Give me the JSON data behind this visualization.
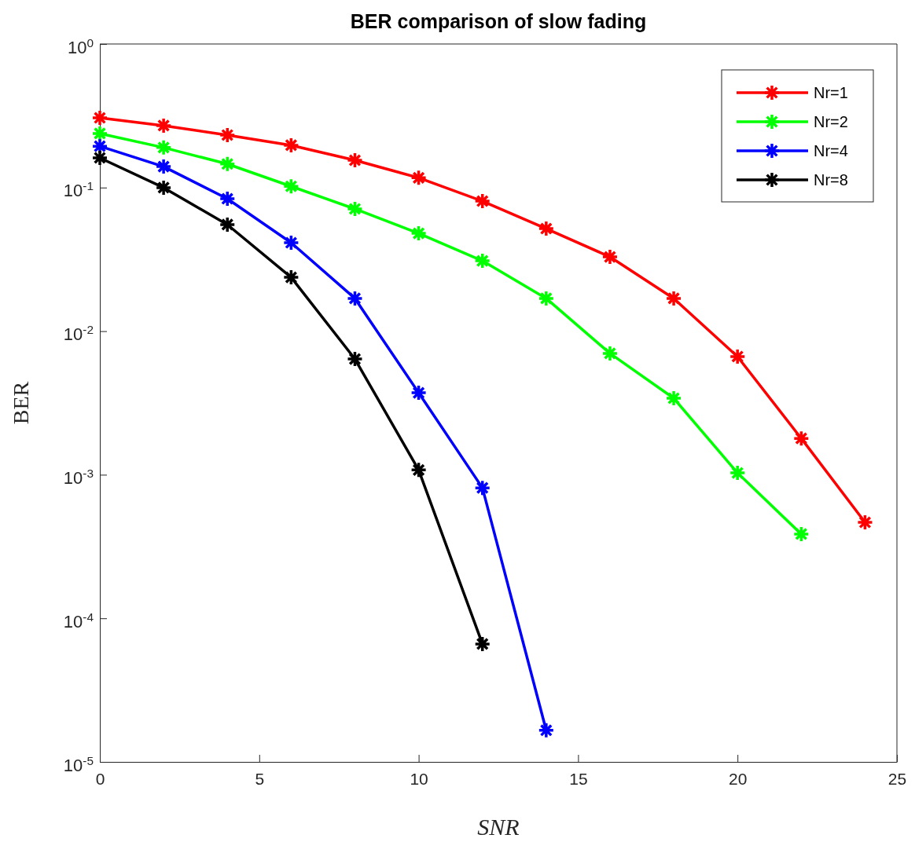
{
  "chart_data": {
    "type": "line",
    "title": "BER comparison of slow fading",
    "xlabel": "SNR",
    "ylabel": "BER",
    "log": "y",
    "grid": false,
    "legend": "top right",
    "marker": "cross",
    "line_style": "solid",
    "xlim": [
      0,
      25
    ],
    "xticks": [
      0,
      5,
      10,
      15,
      20,
      25
    ],
    "ylim": [
      1e-05,
      1
    ],
    "yticks": [
      {
        "value": 1e-05,
        "label": "10$^{-5}$"
      },
      {
        "value": 0.0001,
        "label": "10$^{-4}$"
      },
      {
        "value": 0.001,
        "label": "10$^{-3}$"
      },
      {
        "value": 0.01,
        "label": "10$^{-2}$"
      },
      {
        "value": 0.1,
        "label": "10$^{-1}$"
      },
      {
        "value": 1,
        "label": "10$^{0}$"
      }
    ],
    "series": [
      {
        "name": "Nr=1",
        "color": "#ff0000",
        "x": [
          0,
          2,
          4,
          6,
          8,
          10,
          12,
          14,
          16,
          18,
          20,
          22,
          24
        ],
        "values": [
          0.306,
          0.27,
          0.232,
          0.197,
          0.155,
          0.117,
          0.0805,
          0.0518,
          0.0329,
          0.0169,
          0.00665,
          0.00179,
          0.000466
        ]
      },
      {
        "name": "Nr=2",
        "color": "#00ff00",
        "x": [
          0,
          2,
          4,
          6,
          8,
          10,
          12,
          14,
          16,
          18,
          20,
          22
        ],
        "values": [
          0.238,
          0.19,
          0.146,
          0.102,
          0.071,
          0.048,
          0.0309,
          0.0169,
          0.007,
          0.00341,
          0.00103,
          0.000386
        ]
      },
      {
        "name": "Nr=4",
        "color": "#0000ff",
        "x": [
          0,
          2,
          4,
          6,
          8,
          10,
          12,
          14
        ],
        "values": [
          0.194,
          0.14,
          0.0836,
          0.0413,
          0.0169,
          0.00372,
          0.00081,
          1.66e-05
        ]
      },
      {
        "name": "Nr=8",
        "color": "#000000",
        "x": [
          0,
          2,
          4,
          6,
          8,
          10,
          12
        ],
        "values": [
          0.161,
          0.0998,
          0.0552,
          0.0237,
          0.0064,
          0.00108,
          6.62e-05
        ]
      }
    ]
  }
}
